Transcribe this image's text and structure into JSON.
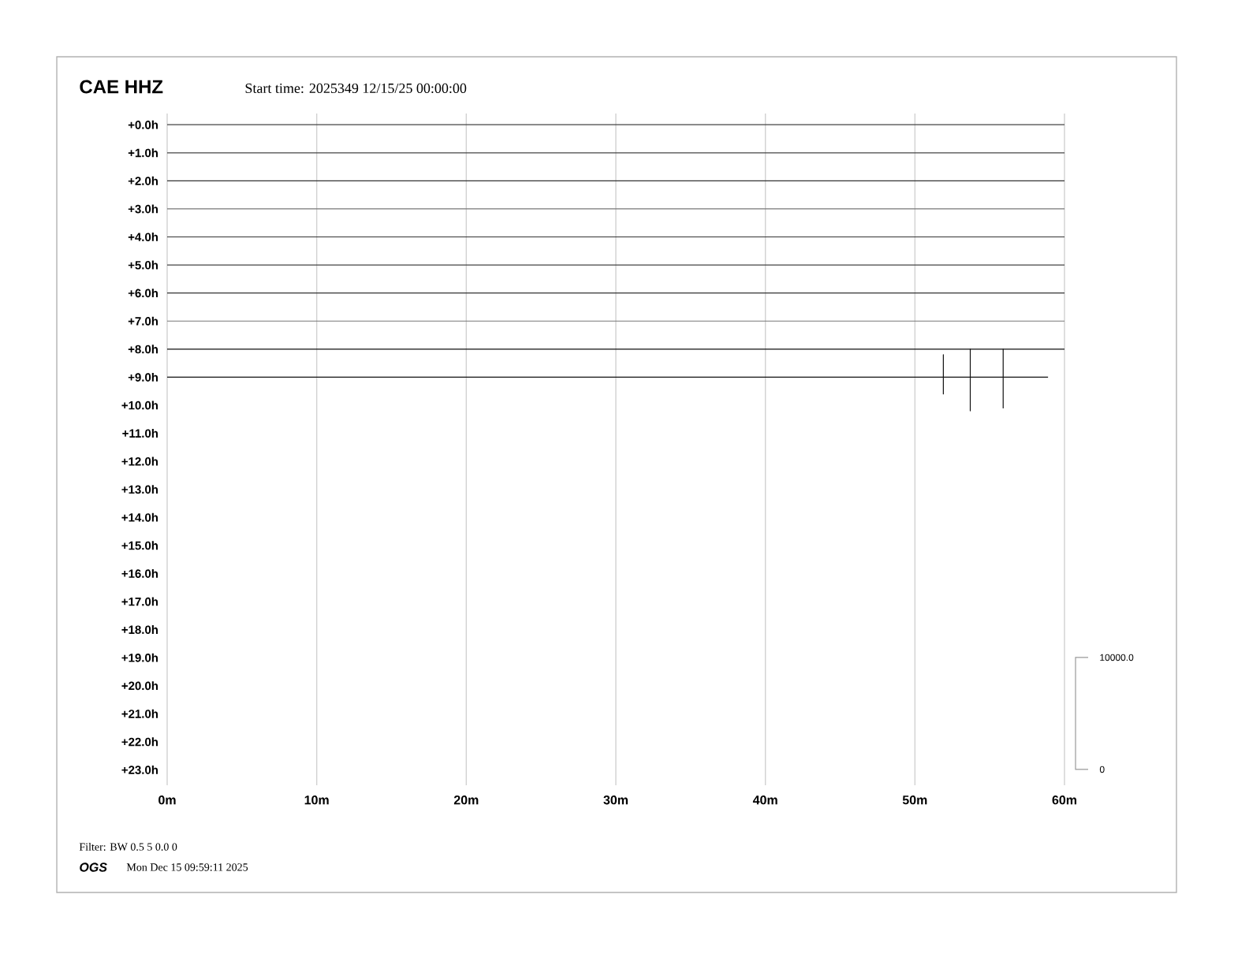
{
  "chart_data": {
    "type": "line",
    "title": "CAE HHZ",
    "subtitle": "Start time: 2025349 12/15/25 00:00:00",
    "xlim": [
      0,
      60
    ],
    "xticks": [
      {
        "value": 0,
        "label": "0m"
      },
      {
        "value": 10,
        "label": "10m"
      },
      {
        "value": 20,
        "label": "20m"
      },
      {
        "value": 30,
        "label": "30m"
      },
      {
        "value": 40,
        "label": "40m"
      },
      {
        "value": 50,
        "label": "50m"
      },
      {
        "value": 60,
        "label": "60m"
      }
    ],
    "ylim": [
      23.55,
      -0.4
    ],
    "yticks": [
      {
        "value": 0,
        "label": "+0.0h"
      },
      {
        "value": 1,
        "label": "+1.0h"
      },
      {
        "value": 2,
        "label": "+2.0h"
      },
      {
        "value": 3,
        "label": "+3.0h"
      },
      {
        "value": 4,
        "label": "+4.0h"
      },
      {
        "value": 5,
        "label": "+5.0h"
      },
      {
        "value": 6,
        "label": "+6.0h"
      },
      {
        "value": 7,
        "label": "+7.0h"
      },
      {
        "value": 8,
        "label": "+8.0h"
      },
      {
        "value": 9,
        "label": "+9.0h"
      },
      {
        "value": 10,
        "label": "+10.0h"
      },
      {
        "value": 11,
        "label": "+11.0h"
      },
      {
        "value": 12,
        "label": "+12.0h"
      },
      {
        "value": 13,
        "label": "+13.0h"
      },
      {
        "value": 14,
        "label": "+14.0h"
      },
      {
        "value": 15,
        "label": "+15.0h"
      },
      {
        "value": 16,
        "label": "+16.0h"
      },
      {
        "value": 17,
        "label": "+17.0h"
      },
      {
        "value": 18,
        "label": "+18.0h"
      },
      {
        "value": 19,
        "label": "+19.0h"
      },
      {
        "value": 20,
        "label": "+20.0h"
      },
      {
        "value": 21,
        "label": "+21.0h"
      },
      {
        "value": 22,
        "label": "+22.0h"
      },
      {
        "value": 23,
        "label": "+23.0h"
      }
    ],
    "grid": "x",
    "marker": "none",
    "line_style": "solid",
    "series": [
      {
        "color": "#444444",
        "x": [
          0,
          60
        ],
        "values": [
          0,
          0
        ]
      },
      {
        "color": "#444444",
        "x": [
          0,
          60
        ],
        "values": [
          1,
          1
        ]
      },
      {
        "color": "#333333",
        "x": [
          0,
          60
        ],
        "values": [
          2,
          2
        ]
      },
      {
        "color": "#777777",
        "x": [
          0,
          60
        ],
        "values": [
          3,
          3
        ]
      },
      {
        "color": "#333333",
        "x": [
          0,
          60
        ],
        "values": [
          4,
          4
        ]
      },
      {
        "color": "#444444",
        "x": [
          0,
          60
        ],
        "values": [
          5,
          5
        ]
      },
      {
        "color": "#333333",
        "x": [
          0,
          60
        ],
        "values": [
          6,
          6
        ]
      },
      {
        "color": "#777777",
        "x": [
          0,
          60
        ],
        "values": [
          7,
          7
        ]
      },
      {
        "color": "#111111",
        "x": [
          0,
          60
        ],
        "values": [
          8,
          8
        ]
      },
      {
        "color": "#111111",
        "x": [
          0,
          51.9,
          51.9,
          51.9,
          51.9,
          53.7,
          53.7,
          53.7,
          53.7,
          55.9,
          55.9,
          55.9,
          55.9,
          58.9
        ],
        "values": [
          9,
          9,
          8.2,
          9.6,
          9,
          9,
          8.0,
          10.2,
          9,
          9,
          8.0,
          10.1,
          9,
          9
        ]
      }
    ],
    "annotations": [
      "Filter: BW 0.5 5 0.0 0",
      "OGS",
      "Mon Dec 15 09:59:11 2025",
      "10000.0",
      "0"
    ]
  }
}
